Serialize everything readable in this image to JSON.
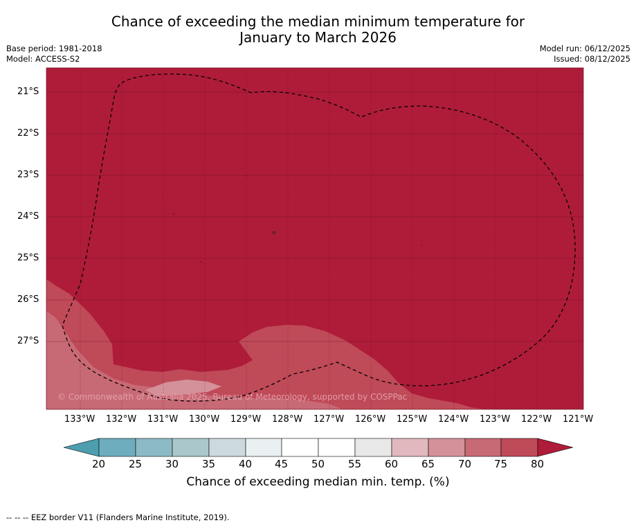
{
  "title": {
    "line1": "Chance of exceeding the median minimum temperature for",
    "line2": "January to March 2026"
  },
  "meta_left": {
    "base_period": "Base period: 1981-2018",
    "model": "Model: ACCESS-S2"
  },
  "meta_right": {
    "model_run": "Model run: 06/12/2025",
    "issued": "Issued: 08/12/2025"
  },
  "map": {
    "copyright": "© Commonwealth of Australia 2025, Bureau of Meteorology, supported by COSPPac",
    "lat_labels": [
      "21°S",
      "22°S",
      "23°S",
      "24°S",
      "25°S",
      "26°S",
      "27°S"
    ],
    "lon_labels": [
      "133°W",
      "132°W",
      "131°W",
      "130°W",
      "129°W",
      "128°W",
      "127°W",
      "126°W",
      "125°W",
      "124°W",
      "123°W",
      "122°W",
      "121°W"
    ],
    "dominant_category": "80+",
    "eez_border_style": "dashed"
  },
  "colorbar": {
    "label": "Chance of exceeding median min. temp. (%)",
    "ticks": [
      "20",
      "25",
      "30",
      "35",
      "40",
      "45",
      "50",
      "55",
      "60",
      "65",
      "70",
      "75",
      "80"
    ],
    "colors": {
      "below20": "#4d9eaf",
      "c20_25": "#6eadbd",
      "c25_30": "#8cbbc6",
      "c30_35": "#aac7cc",
      "c35_40": "#ccdade",
      "c40_45": "#eaf0f2",
      "c45_50": "#ffffff",
      "c50_55": "#ffffff",
      "c55_60": "#e8e8e8",
      "c60_65": "#e2b8bf",
      "c65_70": "#d4919a",
      "c70_75": "#c86a75",
      "c75_80": "#bf4a58",
      "above80": "#ae1c39"
    }
  },
  "footer": {
    "legend": "--  --  -- EEZ border V11 (Flanders Marine Institute, 2019)."
  }
}
